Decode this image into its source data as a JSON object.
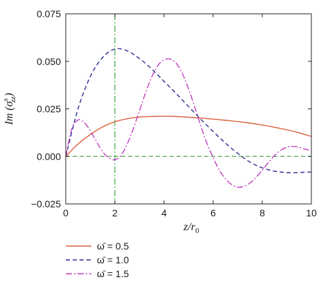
{
  "chart_data": {
    "type": "line",
    "title": "",
    "xlabel": "z/r",
    "xlabel_subscript": "0",
    "ylabel_prefix": "Im (σ",
    "ylabel_superscript": "s",
    "ylabel_subscript": "zz",
    "ylabel_suffix": ")",
    "xlim": [
      0,
      10
    ],
    "ylim": [
      -0.025,
      0.075
    ],
    "xticks": [
      "0",
      "2",
      "4",
      "6",
      "8",
      "10"
    ],
    "yticks": [
      "−0.025",
      "0.000",
      "0.025",
      "0.050",
      "0.075"
    ],
    "grid": false,
    "legend_position": "below",
    "reference_lines": [
      {
        "orientation": "vertical",
        "value": 2,
        "color": "#4aa84a",
        "dash": "dashdot"
      },
      {
        "orientation": "horizontal",
        "value": 0,
        "color": "#4aa84a",
        "dash": "dash"
      }
    ],
    "series": [
      {
        "name": "ω̄ = 0.5",
        "color": "#d9603b",
        "dash": "solid",
        "x": [
          0,
          0.5,
          1,
          1.5,
          2,
          2.5,
          3,
          3.5,
          4,
          4.5,
          5,
          5.5,
          6,
          6.5,
          7,
          7.5,
          8,
          8.5,
          9,
          9.5,
          10
        ],
        "y": [
          0.0,
          0.0065,
          0.0115,
          0.0155,
          0.0182,
          0.0198,
          0.0207,
          0.021,
          0.0211,
          0.021,
          0.0206,
          0.0201,
          0.0196,
          0.019,
          0.0183,
          0.0175,
          0.0165,
          0.0153,
          0.014,
          0.0124,
          0.0105
        ]
      },
      {
        "name": "ω̄ = 1.0",
        "color": "#2b2f8f",
        "dash": "dash",
        "x": [
          0,
          0.5,
          1,
          1.5,
          2,
          2.5,
          3,
          3.5,
          4,
          4.5,
          5,
          5.5,
          6,
          6.5,
          7,
          7.5,
          8,
          8.5,
          9,
          9.5,
          10
        ],
        "y": [
          0.0,
          0.025,
          0.042,
          0.052,
          0.0565,
          0.0555,
          0.0515,
          0.046,
          0.0395,
          0.033,
          0.0262,
          0.0195,
          0.0131,
          0.007,
          0.0016,
          -0.003,
          -0.006,
          -0.0078,
          -0.0085,
          -0.0085,
          -0.0082
        ]
      },
      {
        "name": "ω̄ = 1.5",
        "color": "#c13fc1",
        "dash": "dashdot",
        "x": [
          0,
          0.25,
          0.5,
          0.75,
          1,
          1.25,
          1.5,
          1.75,
          2,
          2.25,
          2.5,
          2.75,
          3,
          3.25,
          3.5,
          3.75,
          4,
          4.25,
          4.5,
          4.75,
          5,
          5.25,
          5.5,
          5.75,
          6,
          6.25,
          6.5,
          6.75,
          7,
          7.25,
          7.5,
          7.75,
          8,
          8.25,
          8.5,
          8.75,
          9,
          9.25,
          9.5,
          9.75,
          10
        ],
        "y": [
          0.0,
          0.0145,
          0.0192,
          0.0178,
          0.0135,
          0.0078,
          0.0025,
          -0.0008,
          -0.0018,
          0.0005,
          0.0065,
          0.0145,
          0.024,
          0.0335,
          0.0418,
          0.0478,
          0.0508,
          0.0512,
          0.049,
          0.0435,
          0.0355,
          0.026,
          0.016,
          0.0068,
          -0.0006,
          -0.0072,
          -0.0118,
          -0.0148,
          -0.0162,
          -0.0158,
          -0.014,
          -0.011,
          -0.0072,
          -0.0032,
          0.0005,
          0.0032,
          0.0048,
          0.0052,
          0.0048,
          0.0038,
          0.003
        ]
      }
    ]
  }
}
